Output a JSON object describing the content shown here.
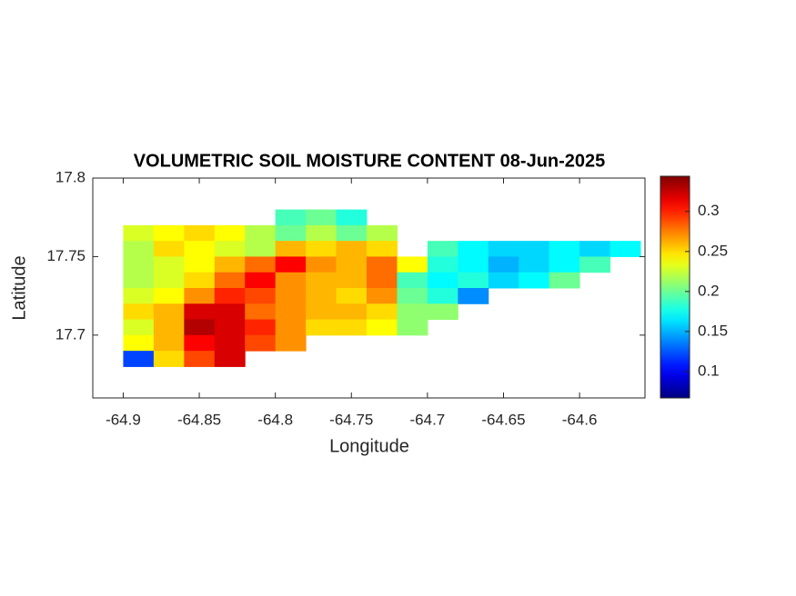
{
  "chart_data": {
    "type": "heatmap",
    "title": "VOLUMETRIC SOIL MOISTURE CONTENT 08-Jun-2025",
    "xlabel": "Longitude",
    "ylabel": "Latitude",
    "xlim": [
      -64.92,
      -64.557
    ],
    "ylim": [
      17.66,
      17.8
    ],
    "xticks": [
      -64.9,
      -64.85,
      -64.8,
      -64.75,
      -64.7,
      -64.65,
      -64.6
    ],
    "yticks": [
      17.7,
      17.75,
      17.8
    ],
    "x": [
      -64.89,
      -64.87,
      -64.85,
      -64.83,
      -64.81,
      -64.79,
      -64.77,
      -64.75,
      -64.73,
      -64.71,
      -64.69,
      -64.67,
      -64.65,
      -64.63,
      -64.61,
      -64.59,
      -64.57
    ],
    "y": [
      17.775,
      17.765,
      17.755,
      17.745,
      17.735,
      17.725,
      17.715,
      17.705,
      17.695,
      17.685
    ],
    "z": [
      [
        null,
        null,
        null,
        null,
        null,
        0.19,
        0.2,
        0.18,
        null,
        null,
        null,
        null,
        null,
        null,
        null,
        null,
        null
      ],
      [
        0.23,
        0.24,
        0.25,
        0.24,
        0.22,
        0.2,
        0.22,
        0.2,
        0.22,
        null,
        null,
        null,
        null,
        null,
        null,
        null,
        null
      ],
      [
        0.22,
        0.25,
        0.24,
        0.23,
        0.22,
        0.26,
        0.25,
        0.26,
        0.25,
        null,
        0.19,
        0.17,
        0.16,
        0.16,
        0.17,
        0.16,
        0.17
      ],
      [
        0.22,
        0.23,
        0.24,
        0.26,
        0.28,
        0.31,
        0.27,
        0.26,
        0.28,
        0.24,
        0.18,
        0.17,
        0.15,
        0.16,
        0.17,
        0.19,
        null
      ],
      [
        0.22,
        0.23,
        0.25,
        0.28,
        0.31,
        0.27,
        0.26,
        0.26,
        0.28,
        0.19,
        0.17,
        0.18,
        0.16,
        0.17,
        0.2,
        null,
        null
      ],
      [
        0.23,
        0.24,
        0.27,
        0.3,
        0.29,
        0.27,
        0.26,
        0.25,
        0.27,
        0.2,
        0.18,
        0.14,
        null,
        null,
        null,
        null,
        null
      ],
      [
        0.25,
        0.26,
        0.32,
        0.32,
        0.28,
        0.27,
        0.26,
        0.26,
        0.25,
        0.21,
        0.21,
        null,
        null,
        null,
        null,
        null,
        null
      ],
      [
        0.23,
        0.26,
        0.33,
        0.32,
        0.3,
        0.27,
        0.25,
        0.25,
        0.24,
        0.21,
        null,
        null,
        null,
        null,
        null,
        null,
        null
      ],
      [
        0.24,
        0.26,
        0.31,
        0.32,
        0.29,
        0.27,
        null,
        null,
        null,
        null,
        null,
        null,
        null,
        null,
        null,
        null,
        null
      ],
      [
        0.12,
        0.25,
        0.29,
        0.32,
        null,
        null,
        null,
        null,
        null,
        null,
        null,
        null,
        null,
        null,
        null,
        null,
        null
      ]
    ],
    "colormap": "jet",
    "clim": [
      0.067,
      0.344
    ],
    "cticks": [
      0.1,
      0.15,
      0.2,
      0.25,
      0.3
    ]
  }
}
